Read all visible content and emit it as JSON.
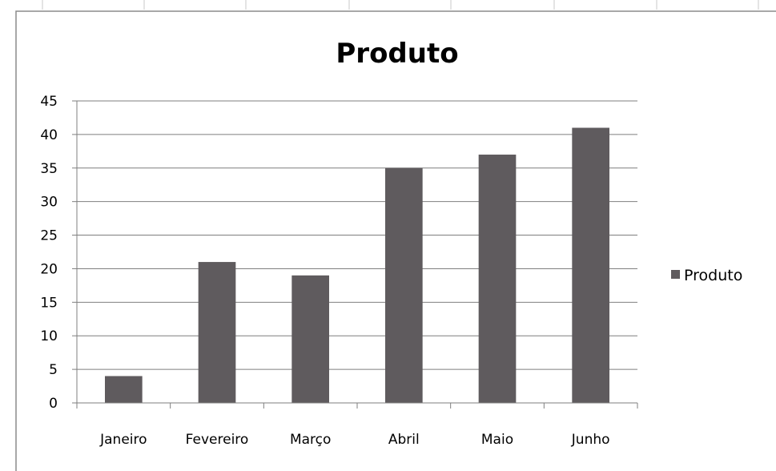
{
  "chart_data": {
    "type": "bar",
    "title": "Produto",
    "categories": [
      "Janeiro",
      "Fevereiro",
      "Março",
      "Abril",
      "Maio",
      "Junho"
    ],
    "series": [
      {
        "name": "Produto",
        "values": [
          4,
          21,
          19,
          35,
          37,
          41
        ]
      }
    ],
    "ylim": [
      0,
      45
    ],
    "yticks": [
      0,
      5,
      10,
      15,
      20,
      25,
      30,
      35,
      40,
      45
    ],
    "ytick_labels": [
      "0",
      "5",
      "10",
      "15",
      "20",
      "25",
      "30",
      "35",
      "40",
      "45"
    ],
    "grid": true,
    "legend_position": "right",
    "bar_color": "#5f5b5e"
  }
}
